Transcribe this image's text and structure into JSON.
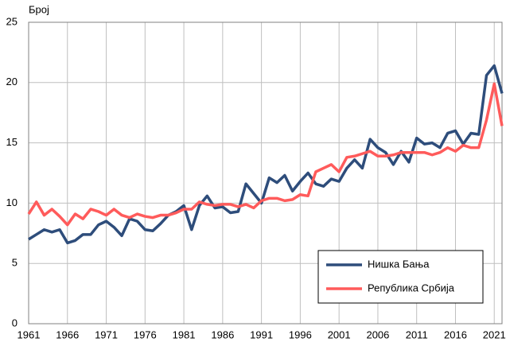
{
  "chart_data": {
    "type": "line",
    "y_label": "Број",
    "x": [
      1961,
      1962,
      1963,
      1964,
      1965,
      1966,
      1967,
      1968,
      1969,
      1970,
      1971,
      1972,
      1973,
      1974,
      1975,
      1976,
      1977,
      1978,
      1979,
      1980,
      1981,
      1982,
      1983,
      1984,
      1985,
      1986,
      1987,
      1988,
      1989,
      1990,
      1991,
      1992,
      1993,
      1994,
      1995,
      1996,
      1997,
      1998,
      1999,
      2000,
      2001,
      2002,
      2003,
      2004,
      2005,
      2006,
      2007,
      2008,
      2009,
      2010,
      2011,
      2012,
      2013,
      2014,
      2015,
      2016,
      2017,
      2018,
      2019,
      2020,
      2021,
      2022
    ],
    "series": [
      {
        "name": "Нишка Бања",
        "color": "#2e4d7b",
        "values": [
          7.0,
          7.4,
          7.8,
          7.6,
          7.8,
          6.7,
          6.9,
          7.4,
          7.4,
          8.2,
          8.5,
          8.0,
          7.3,
          8.7,
          8.5,
          7.8,
          7.7,
          8.3,
          9.0,
          9.3,
          9.8,
          7.8,
          9.8,
          10.6,
          9.6,
          9.7,
          9.2,
          9.3,
          11.6,
          10.8,
          10.0,
          12.1,
          11.7,
          12.3,
          11.0,
          11.8,
          12.5,
          11.6,
          11.4,
          12.0,
          11.8,
          12.9,
          13.6,
          12.9,
          15.3,
          14.6,
          14.2,
          13.2,
          14.3,
          13.4,
          15.4,
          14.9,
          15.0,
          14.6,
          15.8,
          16.0,
          14.9,
          15.8,
          15.7,
          20.6,
          21.4,
          19.1
        ]
      },
      {
        "name": "Република Србија",
        "color": "#ff5b5b",
        "values": [
          9.1,
          10.1,
          9.0,
          9.5,
          8.9,
          8.2,
          9.1,
          8.7,
          9.5,
          9.3,
          9.0,
          9.5,
          9.0,
          8.8,
          9.1,
          8.9,
          8.8,
          9.0,
          9.0,
          9.2,
          9.5,
          9.5,
          10.1,
          9.9,
          9.8,
          9.9,
          9.9,
          9.7,
          9.9,
          9.6,
          10.2,
          10.4,
          10.4,
          10.2,
          10.3,
          10.7,
          10.6,
          12.6,
          12.9,
          13.2,
          12.6,
          13.8,
          13.9,
          14.1,
          14.3,
          13.9,
          13.9,
          14.0,
          14.2,
          14.2,
          14.2,
          14.2,
          14.0,
          14.2,
          14.6,
          14.3,
          14.8,
          14.6,
          14.6,
          16.9,
          19.9,
          16.4
        ]
      }
    ],
    "xlim": [
      1961,
      2022
    ],
    "xticks": [
      1961,
      1966,
      1971,
      1976,
      1981,
      1986,
      1991,
      1996,
      2001,
      2006,
      2011,
      2016,
      2021
    ],
    "ylim": [
      0,
      25
    ],
    "yticks": [
      0,
      5,
      10,
      15,
      20,
      25
    ],
    "grid": true
  }
}
